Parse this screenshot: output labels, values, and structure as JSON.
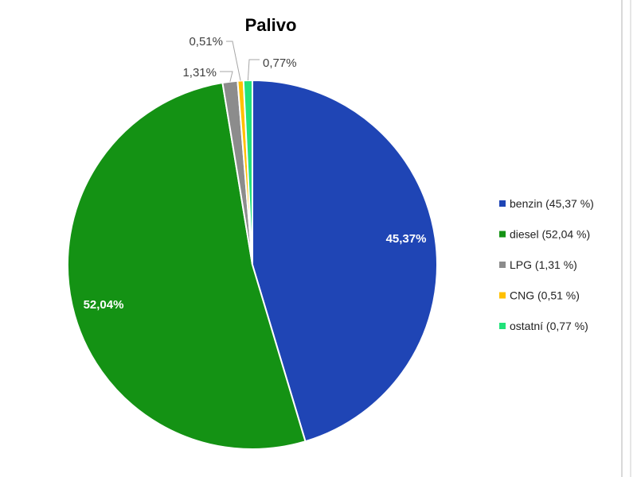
{
  "chart_data": {
    "type": "pie",
    "title": "Palivo",
    "slices": [
      {
        "label": "benzin",
        "value": 45.37,
        "data_label": "45,37%",
        "legend": "benzin (45,37 %)",
        "color": "#1f45b5"
      },
      {
        "label": "diesel",
        "value": 52.04,
        "data_label": "52,04%",
        "legend": "diesel (52,04 %)",
        "color": "#149214"
      },
      {
        "label": "LPG",
        "value": 1.31,
        "data_label": "1,31%",
        "legend": "LPG (1,31 %)",
        "color": "#8c8c8c"
      },
      {
        "label": "CNG",
        "value": 0.51,
        "data_label": "0,51%",
        "legend": "CNG (0,51 %)",
        "color": "#ffc000"
      },
      {
        "label": "ostatní",
        "value": 0.77,
        "data_label": "0,77%",
        "legend": "ostatní (0,77 %)",
        "color": "#21e27a"
      }
    ],
    "legend_position": "right"
  }
}
